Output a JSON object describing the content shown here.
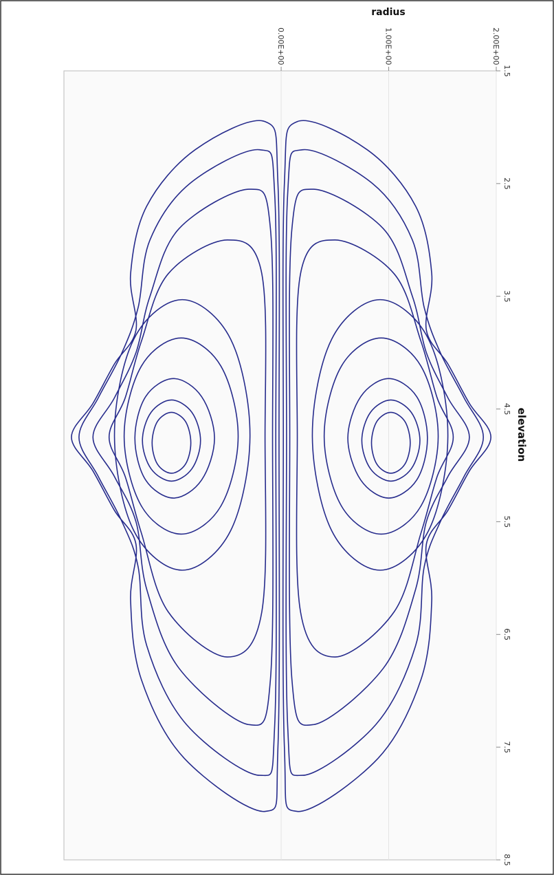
{
  "chart_data": {
    "type": "contour",
    "xlabel": "radius",
    "ylabel": "elevation",
    "xlim": [
      -2.02,
      2
    ],
    "xticks": [
      {
        "value": 0,
        "label": "0.00E+00"
      },
      {
        "value": 1,
        "label": "1.00E+00"
      },
      {
        "value": 2,
        "label": "2.00E+00"
      }
    ],
    "ylim": [
      1.5,
      8.5
    ],
    "yticks": [
      1.5,
      2.5,
      3.5,
      4.5,
      5.5,
      6.5,
      7.5,
      8.5
    ],
    "color": "#262b8c",
    "grid": true,
    "series": [
      {
        "x": [
          1.02,
          1.15,
          1.2,
          1.15,
          1.02,
          0.89,
          0.84,
          0.89
        ],
        "y": [
          5.07,
          4.99,
          4.8,
          4.61,
          4.53,
          4.61,
          4.8,
          4.99
        ]
      },
      {
        "x": [
          1.02,
          1.21,
          1.29,
          1.21,
          1.02,
          0.83,
          0.75,
          0.83
        ],
        "y": [
          5.14,
          5.03,
          4.78,
          4.53,
          4.42,
          4.53,
          4.78,
          5.03
        ]
      },
      {
        "x": [
          1.0,
          1.26,
          1.36,
          1.26,
          1.0,
          0.74,
          0.62,
          0.74
        ],
        "y": [
          5.29,
          5.13,
          4.76,
          4.39,
          4.23,
          4.39,
          4.76,
          5.13
        ]
      },
      {
        "x": [
          0.93,
          1.3,
          1.46,
          1.3,
          0.93,
          0.56,
          0.4,
          0.56
        ],
        "y": [
          5.61,
          5.36,
          4.74,
          4.12,
          3.87,
          4.12,
          4.74,
          5.36
        ]
      },
      {
        "x": [
          0.92,
          1.37,
          1.55,
          1.37,
          0.92,
          0.47,
          0.29,
          0.47
        ],
        "y": [
          5.93,
          5.58,
          4.73,
          3.88,
          3.53,
          3.88,
          4.73,
          5.58
        ]
      },
      {
        "x": [
          0.5,
          1.05,
          1.3,
          1.45,
          1.6,
          1.45,
          1.3,
          1.05,
          0.5,
          0.18,
          0.15,
          0.18
        ],
        "y": [
          3.0,
          3.3,
          3.9,
          4.4,
          4.75,
          5.1,
          5.6,
          6.3,
          6.7,
          6.3,
          4.75,
          3.3
        ]
      },
      {
        "x": [
          0.3,
          0.95,
          1.22,
          1.35,
          1.55,
          1.75,
          1.55,
          1.35,
          1.25,
          0.95,
          0.3,
          0.1,
          0.08,
          0.1
        ],
        "y": [
          2.55,
          2.9,
          3.5,
          4.0,
          4.4,
          4.75,
          5.1,
          5.5,
          6.1,
          6.8,
          7.3,
          6.9,
          4.75,
          2.9
        ]
      },
      {
        "x": [
          0.2,
          0.85,
          1.22,
          1.33,
          1.48,
          1.7,
          1.88,
          1.7,
          1.48,
          1.33,
          1.25,
          0.88,
          0.2,
          0.06,
          0.05,
          0.06
        ],
        "y": [
          2.2,
          2.5,
          3.0,
          3.6,
          4.0,
          4.4,
          4.75,
          5.1,
          5.5,
          5.9,
          6.6,
          7.3,
          7.75,
          7.3,
          4.75,
          2.6
        ]
      },
      {
        "x": [
          0.15,
          0.8,
          1.25,
          1.4,
          1.35,
          1.55,
          1.75,
          1.95,
          1.75,
          1.55,
          1.35,
          1.4,
          1.3,
          0.9,
          0.15,
          0.03,
          0.02,
          0.03
        ],
        "y": [
          1.95,
          2.2,
          2.7,
          3.3,
          3.8,
          4.1,
          4.45,
          4.75,
          5.05,
          5.4,
          5.7,
          6.2,
          6.9,
          7.6,
          8.07,
          7.5,
          4.75,
          2.5
        ]
      },
      {
        "x": [
          -1.02,
          -1.15,
          -1.2,
          -1.15,
          -1.02,
          -0.89,
          -0.84,
          -0.89
        ],
        "y": [
          5.07,
          4.99,
          4.8,
          4.61,
          4.53,
          4.61,
          4.8,
          4.99
        ]
      },
      {
        "x": [
          -1.02,
          -1.21,
          -1.29,
          -1.21,
          -1.02,
          -0.83,
          -0.75,
          -0.83
        ],
        "y": [
          5.14,
          5.03,
          4.78,
          4.53,
          4.42,
          4.53,
          4.78,
          5.03
        ]
      },
      {
        "x": [
          -1.0,
          -1.26,
          -1.36,
          -1.26,
          -1.0,
          -0.74,
          -0.62,
          -0.74
        ],
        "y": [
          5.29,
          5.13,
          4.76,
          4.39,
          4.23,
          4.39,
          4.76,
          5.13
        ]
      },
      {
        "x": [
          -0.93,
          -1.3,
          -1.46,
          -1.3,
          -0.93,
          -0.56,
          -0.4,
          -0.56
        ],
        "y": [
          5.61,
          5.36,
          4.74,
          4.12,
          3.87,
          4.12,
          4.74,
          5.36
        ]
      },
      {
        "x": [
          -0.92,
          -1.37,
          -1.55,
          -1.37,
          -0.92,
          -0.47,
          -0.29,
          -0.47
        ],
        "y": [
          5.93,
          5.58,
          4.73,
          3.88,
          3.53,
          3.88,
          4.73,
          5.58
        ]
      },
      {
        "x": [
          -0.5,
          -1.05,
          -1.3,
          -1.45,
          -1.6,
          -1.45,
          -1.3,
          -1.05,
          -0.5,
          -0.18,
          -0.15,
          -0.18
        ],
        "y": [
          3.0,
          3.3,
          3.9,
          4.4,
          4.75,
          5.1,
          5.6,
          6.3,
          6.7,
          6.3,
          4.75,
          3.3
        ]
      },
      {
        "x": [
          -0.3,
          -0.95,
          -1.22,
          -1.35,
          -1.55,
          -1.75,
          -1.55,
          -1.35,
          -1.25,
          -0.95,
          -0.3,
          -0.1,
          -0.08,
          -0.1
        ],
        "y": [
          2.55,
          2.9,
          3.5,
          4.0,
          4.4,
          4.75,
          5.1,
          5.5,
          6.1,
          6.8,
          7.3,
          6.9,
          4.75,
          2.9
        ]
      },
      {
        "x": [
          -0.2,
          -0.85,
          -1.22,
          -1.33,
          -1.48,
          -1.7,
          -1.88,
          -1.7,
          -1.48,
          -1.33,
          -1.25,
          -0.88,
          -0.2,
          -0.06,
          -0.05,
          -0.06
        ],
        "y": [
          2.2,
          2.5,
          3.0,
          3.6,
          4.0,
          4.4,
          4.75,
          5.1,
          5.5,
          5.9,
          6.6,
          7.3,
          7.75,
          7.3,
          4.75,
          2.6
        ]
      },
      {
        "x": [
          -0.15,
          -0.8,
          -1.25,
          -1.4,
          -1.35,
          -1.55,
          -1.75,
          -1.95,
          -1.75,
          -1.55,
          -1.35,
          -1.4,
          -1.3,
          -0.9,
          -0.15,
          -0.03,
          -0.02,
          -0.03
        ],
        "y": [
          1.95,
          2.2,
          2.7,
          3.3,
          3.8,
          4.1,
          4.45,
          4.75,
          5.05,
          5.4,
          5.7,
          6.2,
          6.9,
          7.6,
          8.07,
          7.5,
          4.75,
          2.5
        ]
      }
    ]
  }
}
